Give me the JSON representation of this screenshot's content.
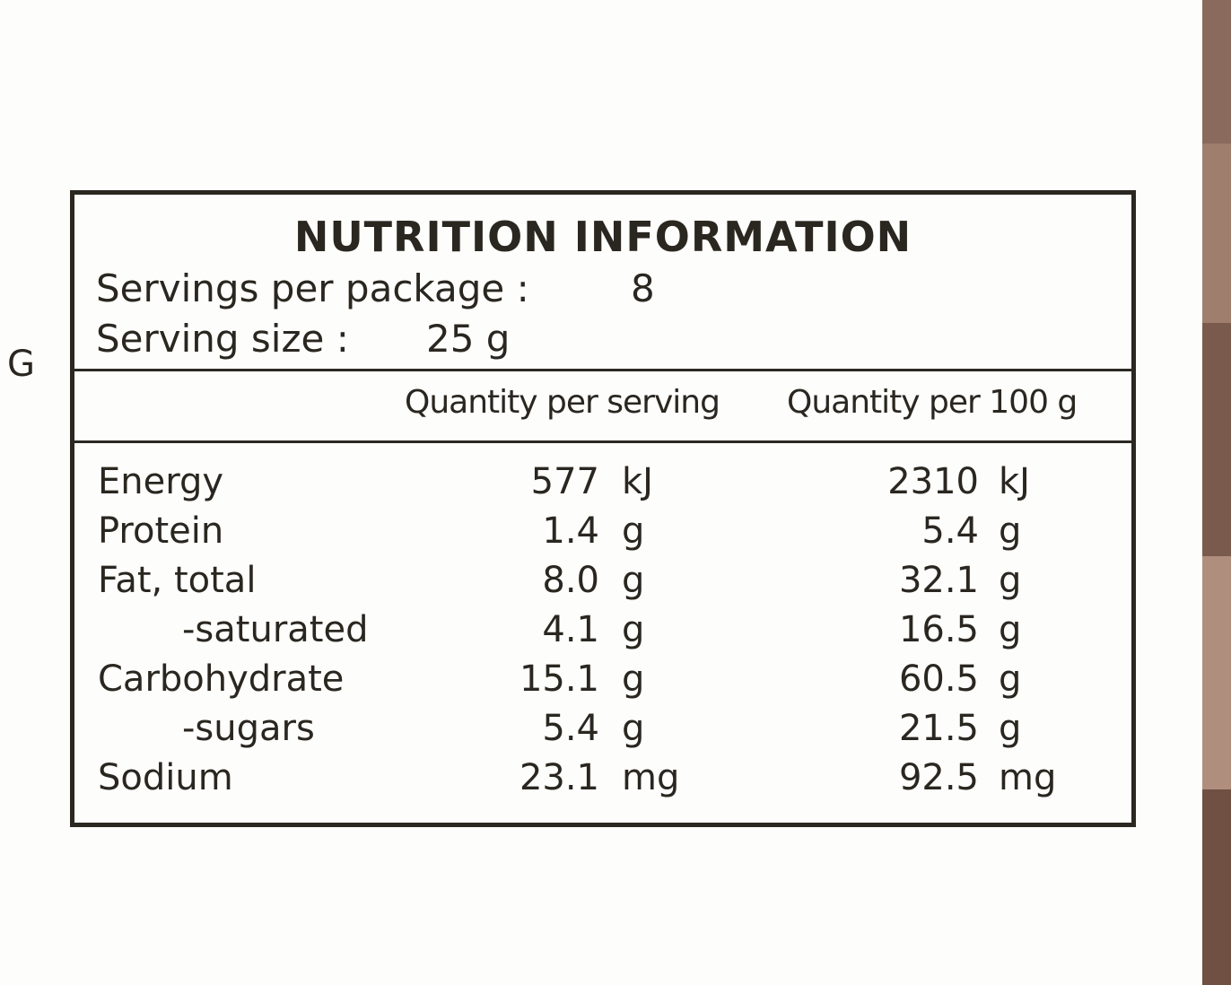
{
  "stray_letter": "G",
  "header": {
    "title": "NUTRITION INFORMATION",
    "servings_label": "Servings per package :",
    "servings_value": "8",
    "serving_size_label": "Serving size :",
    "serving_size_value": "25 g"
  },
  "table": {
    "columns": [
      "Quantity per serving",
      "Quantity per 100 g"
    ],
    "rows": [
      {
        "name": "Energy",
        "indent": false,
        "per_serving": "577",
        "per_serving_unit": "kJ",
        "per_100g": "2310",
        "per_100g_unit": "kJ"
      },
      {
        "name": "Protein",
        "indent": false,
        "per_serving": "1.4",
        "per_serving_unit": "g",
        "per_100g": "5.4",
        "per_100g_unit": "g"
      },
      {
        "name": "Fat, total",
        "indent": false,
        "per_serving": "8.0",
        "per_serving_unit": "g",
        "per_100g": "32.1",
        "per_100g_unit": "g"
      },
      {
        "name": "-saturated",
        "indent": true,
        "per_serving": "4.1",
        "per_serving_unit": "g",
        "per_100g": "16.5",
        "per_100g_unit": "g"
      },
      {
        "name": "Carbohydrate",
        "indent": false,
        "per_serving": "15.1",
        "per_serving_unit": "g",
        "per_100g": "60.5",
        "per_100g_unit": "g"
      },
      {
        "name": "-sugars",
        "indent": true,
        "per_serving": "5.4",
        "per_serving_unit": "g",
        "per_100g": "21.5",
        "per_100g_unit": "g"
      },
      {
        "name": "Sodium",
        "indent": false,
        "per_serving": "23.1",
        "per_serving_unit": "mg",
        "per_100g": "92.5",
        "per_100g_unit": "mg"
      }
    ]
  }
}
